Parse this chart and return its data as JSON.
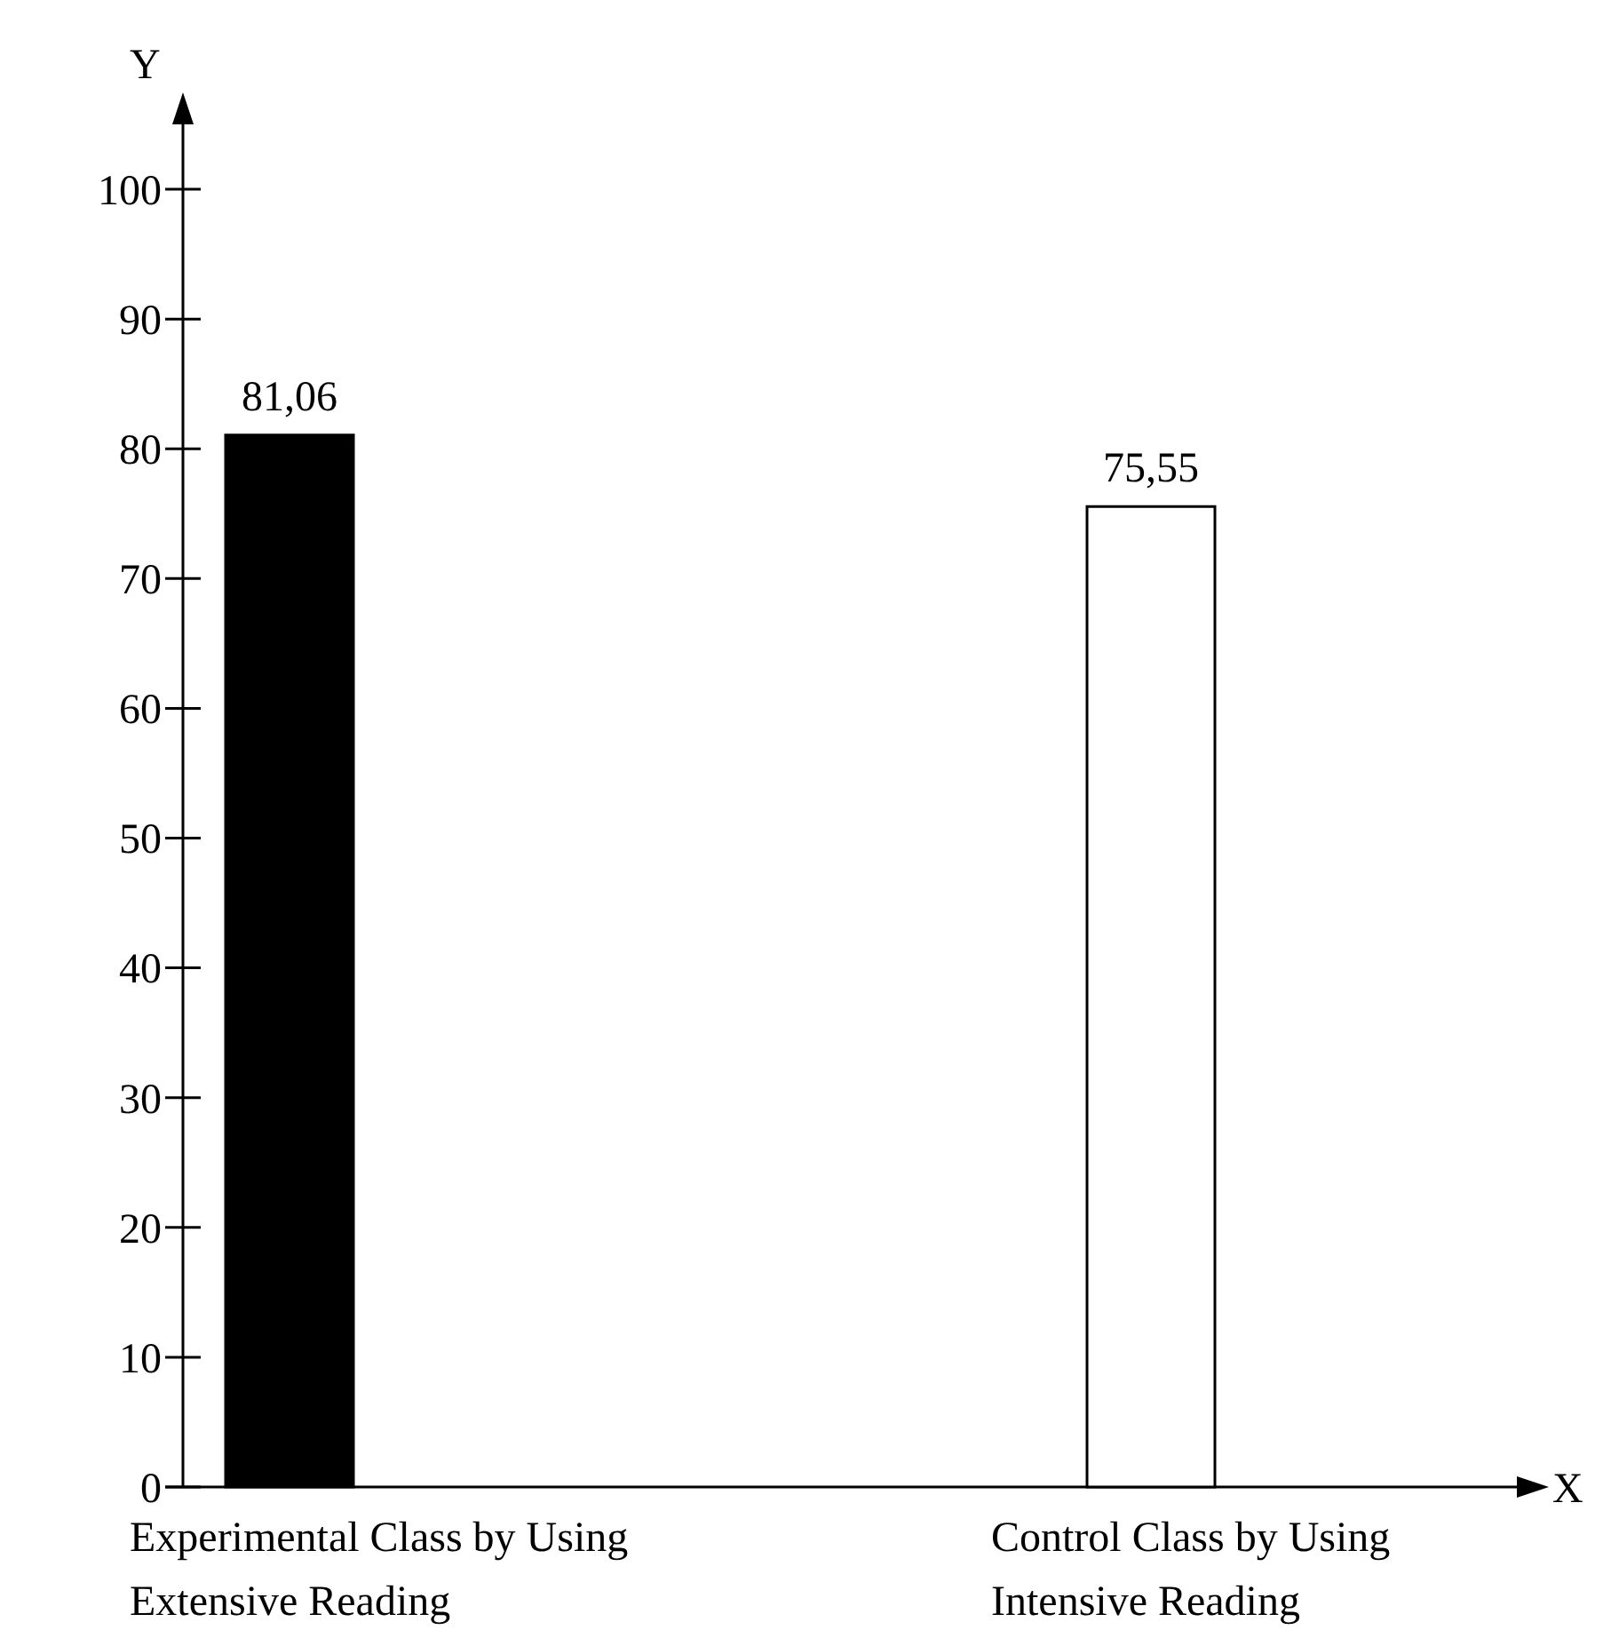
{
  "chart_data": {
    "type": "bar",
    "xlabel": "X",
    "ylabel": "Y",
    "categories": [
      "Experimental Class by Using Extensive Reading",
      "Control Class by Using Intensive Reading"
    ],
    "values": [
      81.06,
      75.55
    ],
    "colors": [
      "#000000",
      "#ffffff"
    ],
    "value_labels": [
      "81,06",
      "75,55"
    ],
    "ylim": [
      0,
      105
    ],
    "yticks": [
      0,
      10,
      20,
      30,
      40,
      50,
      60,
      70,
      80,
      90,
      100
    ],
    "grid": false
  }
}
